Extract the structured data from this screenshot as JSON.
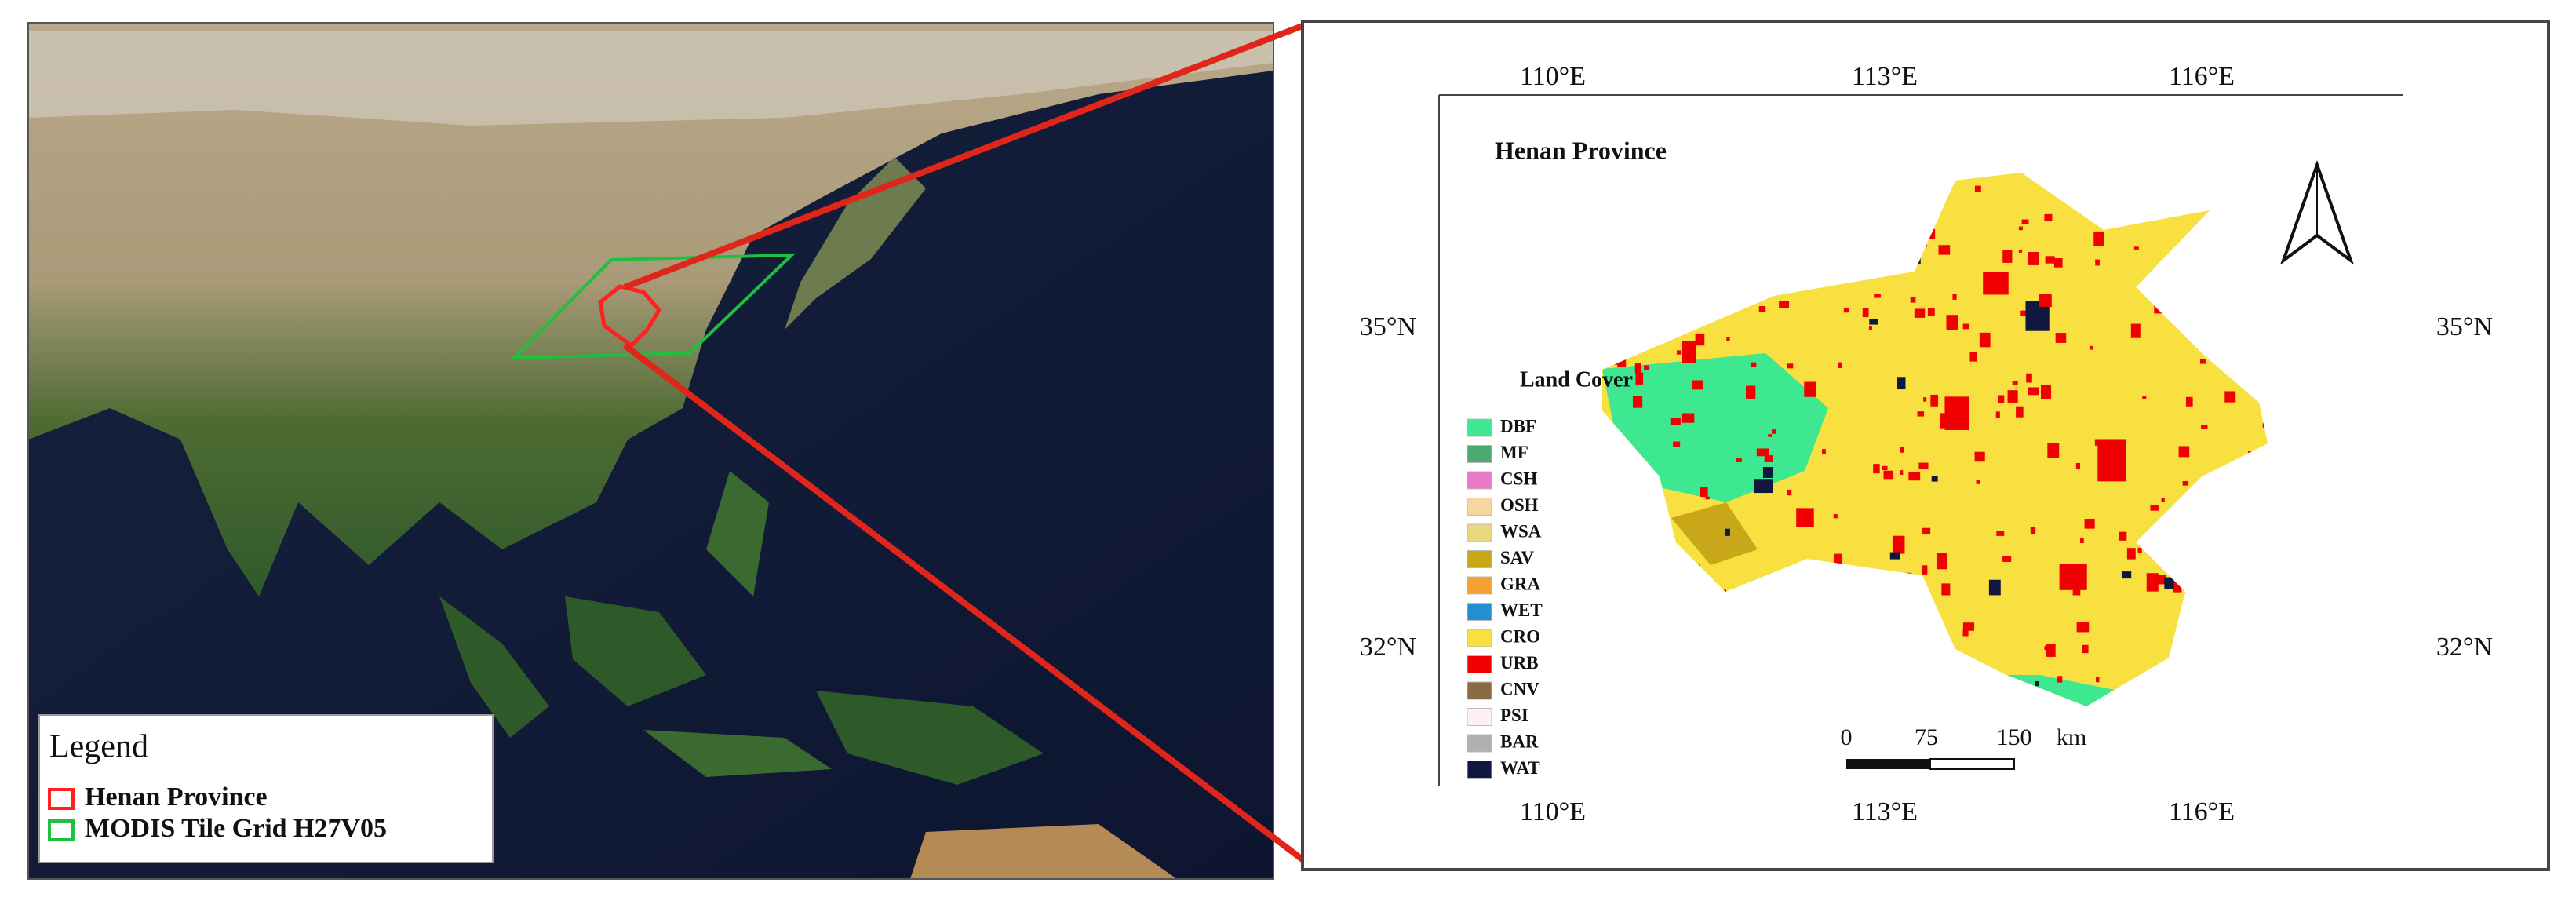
{
  "left_map": {
    "legend": {
      "title": "Legend",
      "items": [
        "Henan Province",
        "MODIS Tile Grid H27V05"
      ]
    }
  },
  "right_map": {
    "title": "Henan Province",
    "legend_title": "Land Cover",
    "classes": [
      "DBF",
      "MF",
      "CSH",
      "OSH",
      "WSA",
      "SAV",
      "GRA",
      "WET",
      "CRO",
      "URB",
      "CNV",
      "PSI",
      "BAR",
      "WAT"
    ],
    "longitude_labels": [
      "110°E",
      "113°E",
      "116°E"
    ],
    "latitude_labels": [
      "35°N",
      "32°N"
    ],
    "scale_bar": [
      "0",
      "75",
      "150",
      "km"
    ]
  }
}
